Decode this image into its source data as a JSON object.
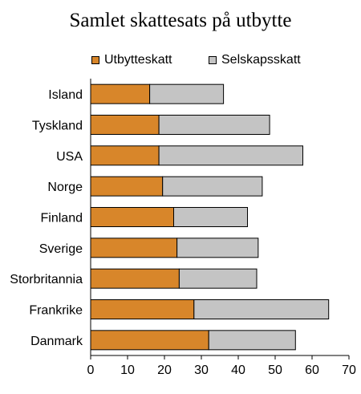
{
  "chart_data": {
    "type": "bar",
    "orientation": "horizontal",
    "stacked": true,
    "title": "Samlet skattesats på utbytte",
    "categories": [
      "Island",
      "Tyskland",
      "USA",
      "Norge",
      "Finland",
      "Sverige",
      "Storbritannia",
      "Frankrike",
      "Danmark"
    ],
    "series": [
      {
        "name": "Utbytteskatt",
        "color": "#d8862a",
        "values": [
          16,
          18.5,
          18.5,
          19.5,
          22.5,
          23.4,
          24,
          28,
          32
        ]
      },
      {
        "name": "Selskapsskatt",
        "color": "#c4c4c4",
        "values": [
          20,
          30,
          39,
          27,
          20,
          22,
          21,
          36.5,
          23.5
        ]
      }
    ],
    "xlim": [
      0,
      70
    ],
    "xticks": [
      0,
      10,
      20,
      30,
      40,
      50,
      60,
      70
    ],
    "xlabel": "",
    "ylabel": "",
    "grid": false,
    "legend_position": "top"
  }
}
